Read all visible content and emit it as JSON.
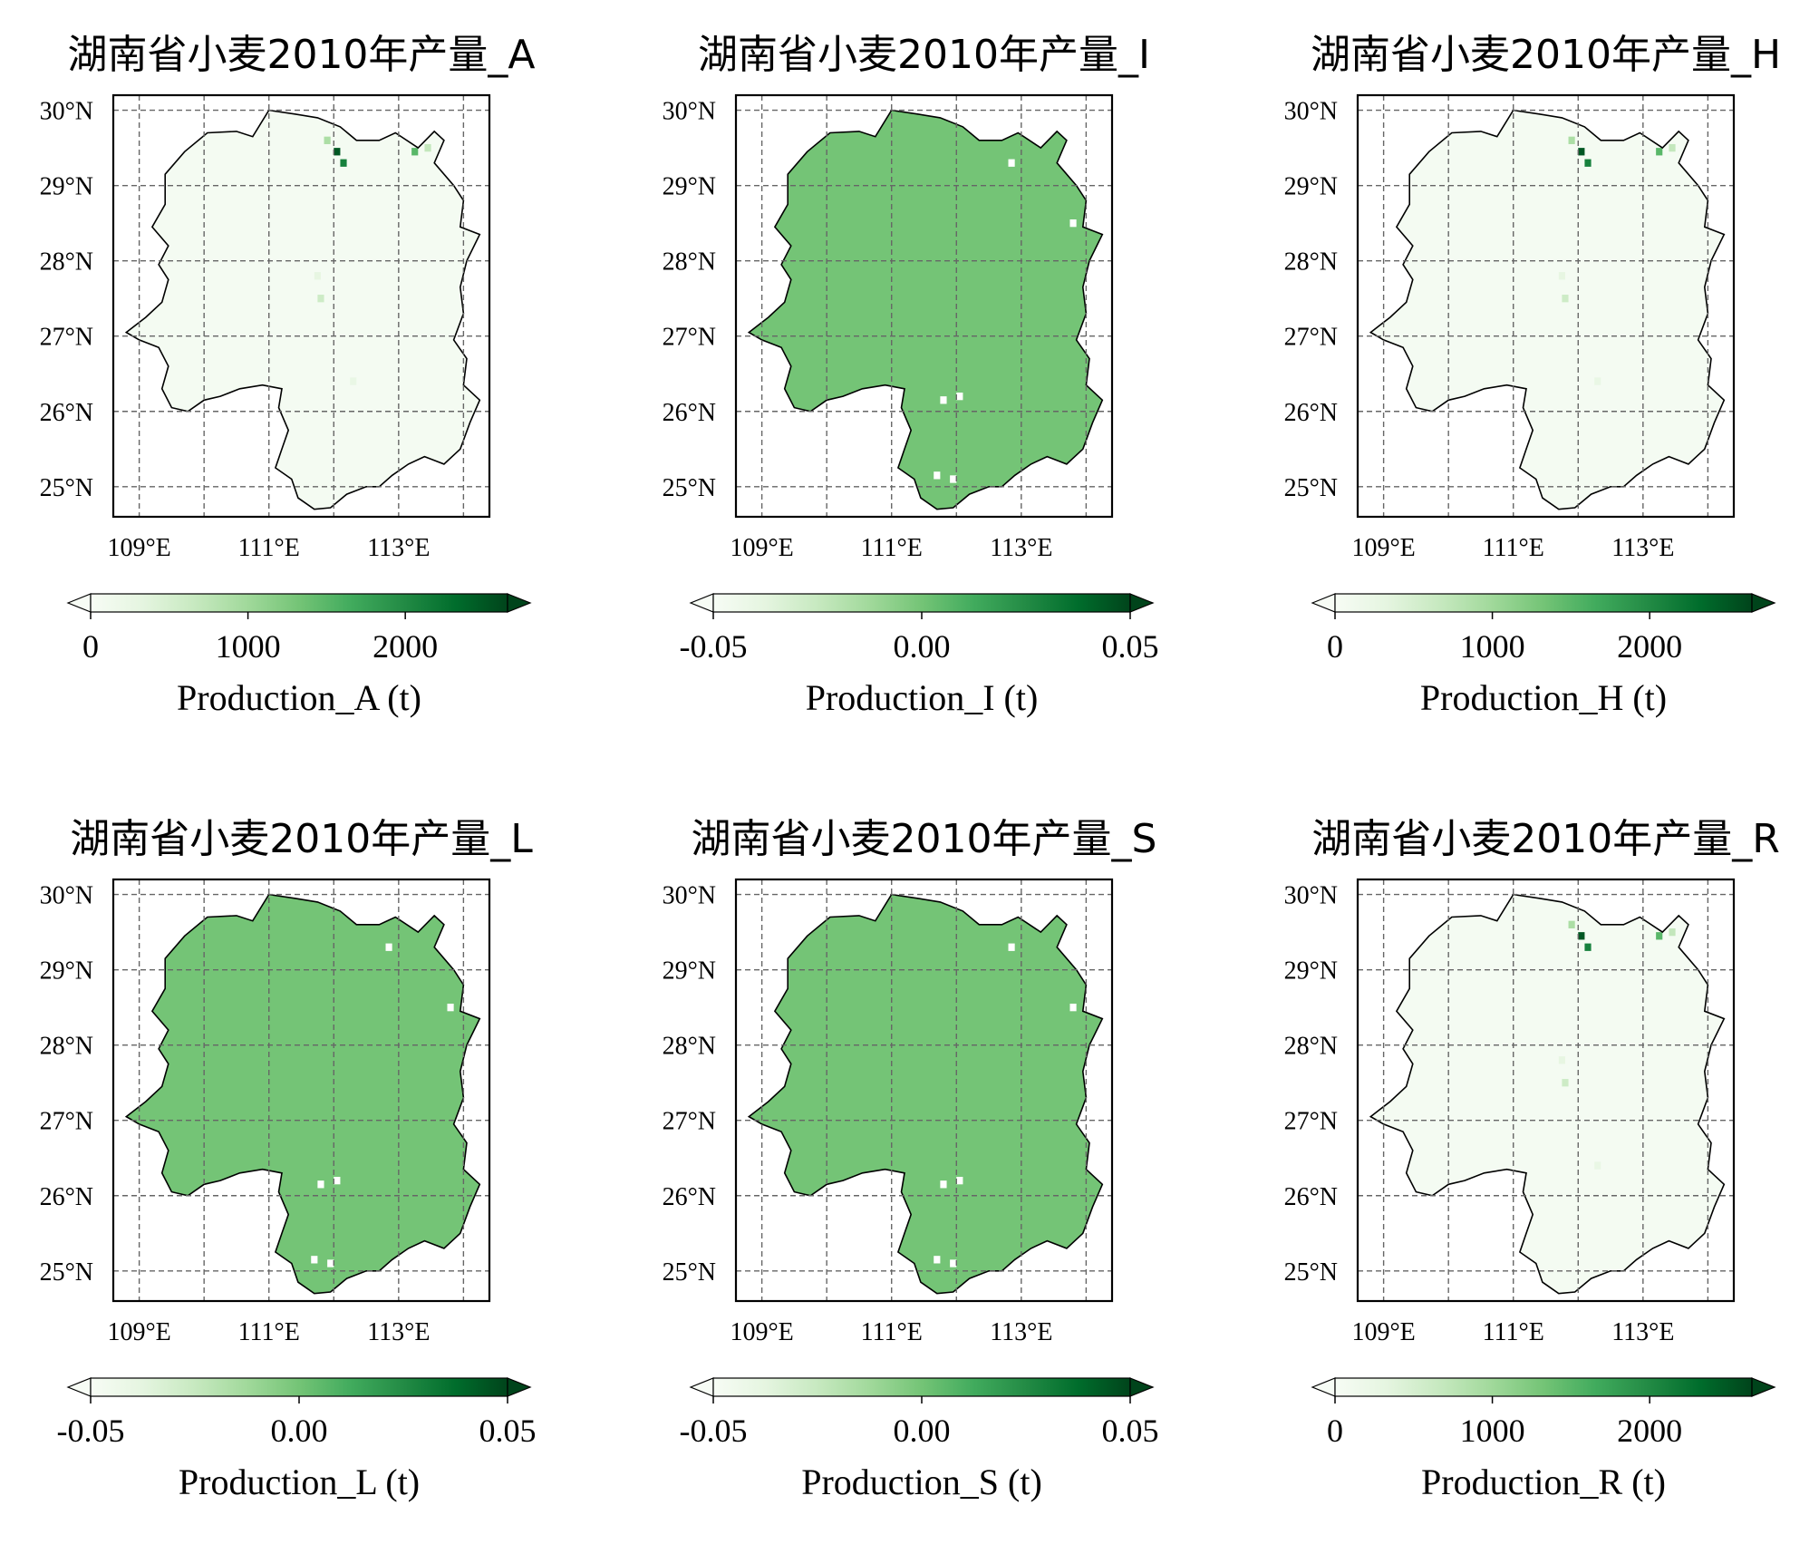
{
  "colors": {
    "cmap": [
      "#f7fcf5",
      "#e5f5e0",
      "#c7e9c0",
      "#a1d99b",
      "#74c476",
      "#41ab5d",
      "#238b45",
      "#006d2c",
      "#00441b"
    ],
    "region_uniform_fill": "#74c476",
    "grid_line": "#666666",
    "frame": "#000000"
  },
  "chart_data": [
    {
      "type": "heatmap",
      "title": "湖南省小麦2010年产量_A",
      "x_ticks": [
        "109°E",
        "111°E",
        "113°E"
      ],
      "y_ticks": [
        "30°N",
        "29°N",
        "28°N",
        "27°N",
        "26°N",
        "25°N"
      ],
      "xlim": [
        108.6,
        114.4
      ],
      "ylim": [
        24.6,
        30.2
      ],
      "grid": true,
      "colorbar": {
        "ticks": [
          "0",
          "1000",
          "2000"
        ],
        "range": [
          0,
          2650
        ],
        "extend": "both",
        "label": "Production_A (t)"
      },
      "uniform_value": null,
      "hotspots": [
        {
          "lon": 112.05,
          "lat": 29.45,
          "value": 2500
        },
        {
          "lon": 112.15,
          "lat": 29.3,
          "value": 2100
        },
        {
          "lon": 111.9,
          "lat": 29.6,
          "value": 900
        },
        {
          "lon": 113.25,
          "lat": 29.45,
          "value": 1500
        },
        {
          "lon": 113.45,
          "lat": 29.5,
          "value": 700
        },
        {
          "lon": 111.8,
          "lat": 27.5,
          "value": 600
        },
        {
          "lon": 111.75,
          "lat": 27.8,
          "value": 300
        },
        {
          "lon": 112.3,
          "lat": 26.4,
          "value": 250
        }
      ],
      "blank_cells": []
    },
    {
      "type": "heatmap",
      "title": "湖南省小麦2010年产量_I",
      "x_ticks": [
        "109°E",
        "111°E",
        "113°E"
      ],
      "y_ticks": [
        "30°N",
        "29°N",
        "28°N",
        "27°N",
        "26°N",
        "25°N"
      ],
      "xlim": [
        108.6,
        114.4
      ],
      "ylim": [
        24.6,
        30.2
      ],
      "grid": true,
      "colorbar": {
        "ticks": [
          "-0.05",
          "0.00",
          "0.05"
        ],
        "range": [
          -0.05,
          0.05
        ],
        "extend": "both",
        "label": "Production_I (t)"
      },
      "uniform_value": 0.0,
      "hotspots": [],
      "blank_cells": [
        {
          "lon": 112.85,
          "lat": 29.3
        },
        {
          "lon": 113.8,
          "lat": 28.5
        },
        {
          "lon": 111.8,
          "lat": 26.15
        },
        {
          "lon": 112.05,
          "lat": 26.2
        },
        {
          "lon": 111.7,
          "lat": 25.15
        },
        {
          "lon": 111.95,
          "lat": 25.1
        }
      ]
    },
    {
      "type": "heatmap",
      "title": "湖南省小麦2010年产量_H",
      "x_ticks": [
        "109°E",
        "111°E",
        "113°E"
      ],
      "y_ticks": [
        "30°N",
        "29°N",
        "28°N",
        "27°N",
        "26°N",
        "25°N"
      ],
      "xlim": [
        108.6,
        114.4
      ],
      "ylim": [
        24.6,
        30.2
      ],
      "grid": true,
      "colorbar": {
        "ticks": [
          "0",
          "1000",
          "2000"
        ],
        "range": [
          0,
          2650
        ],
        "extend": "both",
        "label": "Production_H (t)"
      },
      "uniform_value": null,
      "hotspots": [
        {
          "lon": 112.05,
          "lat": 29.45,
          "value": 2500
        },
        {
          "lon": 112.15,
          "lat": 29.3,
          "value": 2100
        },
        {
          "lon": 111.9,
          "lat": 29.6,
          "value": 900
        },
        {
          "lon": 113.25,
          "lat": 29.45,
          "value": 1500
        },
        {
          "lon": 113.45,
          "lat": 29.5,
          "value": 700
        },
        {
          "lon": 111.8,
          "lat": 27.5,
          "value": 600
        },
        {
          "lon": 111.75,
          "lat": 27.8,
          "value": 300
        },
        {
          "lon": 112.3,
          "lat": 26.4,
          "value": 250
        }
      ],
      "blank_cells": []
    },
    {
      "type": "heatmap",
      "title": "湖南省小麦2010年产量_L",
      "x_ticks": [
        "109°E",
        "111°E",
        "113°E"
      ],
      "y_ticks": [
        "30°N",
        "29°N",
        "28°N",
        "27°N",
        "26°N",
        "25°N"
      ],
      "xlim": [
        108.6,
        114.4
      ],
      "ylim": [
        24.6,
        30.2
      ],
      "grid": true,
      "colorbar": {
        "ticks": [
          "-0.05",
          "0.00",
          "0.05"
        ],
        "range": [
          -0.05,
          0.05
        ],
        "extend": "both",
        "label": "Production_L (t)"
      },
      "uniform_value": 0.0,
      "hotspots": [],
      "blank_cells": [
        {
          "lon": 112.85,
          "lat": 29.3
        },
        {
          "lon": 113.8,
          "lat": 28.5
        },
        {
          "lon": 111.8,
          "lat": 26.15
        },
        {
          "lon": 112.05,
          "lat": 26.2
        },
        {
          "lon": 111.7,
          "lat": 25.15
        },
        {
          "lon": 111.95,
          "lat": 25.1
        }
      ]
    },
    {
      "type": "heatmap",
      "title": "湖南省小麦2010年产量_S",
      "x_ticks": [
        "109°E",
        "111°E",
        "113°E"
      ],
      "y_ticks": [
        "30°N",
        "29°N",
        "28°N",
        "27°N",
        "26°N",
        "25°N"
      ],
      "xlim": [
        108.6,
        114.4
      ],
      "ylim": [
        24.6,
        30.2
      ],
      "grid": true,
      "colorbar": {
        "ticks": [
          "-0.05",
          "0.00",
          "0.05"
        ],
        "range": [
          -0.05,
          0.05
        ],
        "extend": "both",
        "label": "Production_S (t)"
      },
      "uniform_value": 0.0,
      "hotspots": [],
      "blank_cells": [
        {
          "lon": 112.85,
          "lat": 29.3
        },
        {
          "lon": 113.8,
          "lat": 28.5
        },
        {
          "lon": 111.8,
          "lat": 26.15
        },
        {
          "lon": 112.05,
          "lat": 26.2
        },
        {
          "lon": 111.7,
          "lat": 25.15
        },
        {
          "lon": 111.95,
          "lat": 25.1
        }
      ]
    },
    {
      "type": "heatmap",
      "title": "湖南省小麦2010年产量_R",
      "x_ticks": [
        "109°E",
        "111°E",
        "113°E"
      ],
      "y_ticks": [
        "30°N",
        "29°N",
        "28°N",
        "27°N",
        "26°N",
        "25°N"
      ],
      "xlim": [
        108.6,
        114.4
      ],
      "ylim": [
        24.6,
        30.2
      ],
      "grid": true,
      "colorbar": {
        "ticks": [
          "0",
          "1000",
          "2000"
        ],
        "range": [
          0,
          2650
        ],
        "extend": "both",
        "label": "Production_R (t)"
      },
      "uniform_value": null,
      "hotspots": [
        {
          "lon": 112.05,
          "lat": 29.45,
          "value": 2500
        },
        {
          "lon": 112.15,
          "lat": 29.3,
          "value": 2100
        },
        {
          "lon": 111.9,
          "lat": 29.6,
          "value": 900
        },
        {
          "lon": 113.25,
          "lat": 29.45,
          "value": 1500
        },
        {
          "lon": 113.45,
          "lat": 29.5,
          "value": 700
        },
        {
          "lon": 111.8,
          "lat": 27.5,
          "value": 600
        },
        {
          "lon": 111.75,
          "lat": 27.8,
          "value": 300
        },
        {
          "lon": 112.3,
          "lat": 26.4,
          "value": 250
        }
      ],
      "blank_cells": []
    }
  ]
}
